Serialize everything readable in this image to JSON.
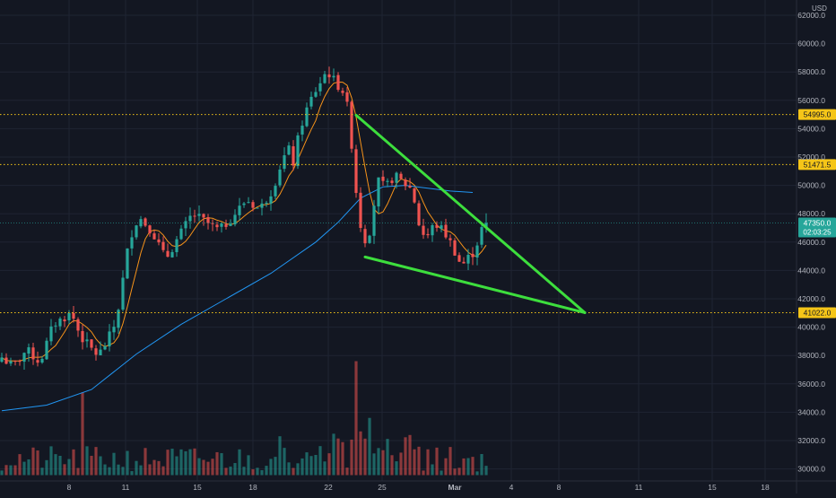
{
  "header": {
    "currency": "USD"
  },
  "chart_data": {
    "type": "candlestick",
    "y_axis": {
      "unit": "USD",
      "range": [
        29000,
        63000
      ],
      "ticks": [
        "30000.0",
        "32000.0",
        "34000.0",
        "36000.0",
        "38000.0",
        "40000.0",
        "42000.0",
        "44000.0",
        "46000.0",
        "48000.0",
        "50000.0",
        "52000.0",
        "54000.0",
        "56000.0",
        "58000.0",
        "60000.0",
        "62000.0"
      ]
    },
    "x_axis": {
      "ticks": [
        {
          "label": "8",
          "bold": false
        },
        {
          "label": "11",
          "bold": false
        },
        {
          "label": "15",
          "bold": false
        },
        {
          "label": "18",
          "bold": false
        },
        {
          "label": "22",
          "bold": false
        },
        {
          "label": "25",
          "bold": false
        },
        {
          "label": "Mar",
          "bold": true
        },
        {
          "label": "4",
          "bold": false
        },
        {
          "label": "8",
          "bold": false
        },
        {
          "label": "11",
          "bold": false
        },
        {
          "label": "15",
          "bold": false
        },
        {
          "label": "18",
          "bold": false
        }
      ]
    },
    "horizontal_levels": [
      {
        "value": 54995.0,
        "label": "54995.0",
        "color": "#f5c518"
      },
      {
        "value": 51471.5,
        "label": "51471.5",
        "color": "#f5c518"
      },
      {
        "value": 41022.0,
        "label": "41022.0",
        "color": "#f5c518"
      }
    ],
    "last_price": {
      "value": 47350.0,
      "label": "47350.0",
      "countdown": "02:03:25",
      "color": "#26a69a"
    },
    "candle_path": [
      [
        0,
        38000
      ],
      [
        3,
        37200
      ],
      [
        6,
        38400
      ],
      [
        9,
        37500
      ],
      [
        12,
        40200
      ],
      [
        16,
        41000
      ],
      [
        18,
        39400
      ],
      [
        20,
        38600
      ],
      [
        22,
        38000
      ],
      [
        24,
        39000
      ],
      [
        26,
        40400
      ],
      [
        29,
        46300
      ],
      [
        31,
        47800
      ],
      [
        34,
        46800
      ],
      [
        37,
        44800
      ],
      [
        40,
        46400
      ],
      [
        43,
        48000
      ],
      [
        46,
        47400
      ],
      [
        49,
        46800
      ],
      [
        52,
        47800
      ],
      [
        55,
        49000
      ],
      [
        58,
        48300
      ],
      [
        61,
        49800
      ],
      [
        63,
        51800
      ],
      [
        64.5,
        52500
      ],
      [
        65.5,
        51600
      ],
      [
        67,
        54000
      ],
      [
        69,
        55800
      ],
      [
        71,
        57000
      ],
      [
        73,
        58100
      ],
      [
        75,
        57200
      ],
      [
        76.5,
        56700
      ],
      [
        78,
        55000
      ],
      [
        79,
        50800
      ],
      [
        80.5,
        47200
      ],
      [
        82,
        45700
      ],
      [
        83,
        47900
      ],
      [
        84.5,
        50300
      ],
      [
        86,
        49800
      ],
      [
        88,
        50700
      ],
      [
        90,
        50200
      ],
      [
        92,
        49700
      ],
      [
        93.5,
        47300
      ],
      [
        95,
        46200
      ],
      [
        97,
        47300
      ],
      [
        99,
        46800
      ],
      [
        101,
        45700
      ],
      [
        103,
        44300
      ],
      [
        104.5,
        44900
      ],
      [
        106,
        45400
      ],
      [
        107,
        46500
      ],
      [
        108,
        47350
      ]
    ],
    "ma_fast_color": "#f7931a",
    "ma_slow_color": "#2196f3",
    "ma_slow_path": [
      [
        0,
        34100
      ],
      [
        10,
        34500
      ],
      [
        20,
        35600
      ],
      [
        30,
        38100
      ],
      [
        40,
        40200
      ],
      [
        50,
        42000
      ],
      [
        60,
        43800
      ],
      [
        70,
        46000
      ],
      [
        75,
        47400
      ],
      [
        80,
        49100
      ],
      [
        85,
        49900
      ],
      [
        90,
        50000
      ],
      [
        95,
        49800
      ],
      [
        100,
        49600
      ],
      [
        105,
        49500
      ]
    ],
    "pattern": {
      "type": "falling wedge",
      "color": "#3dde3d",
      "upper_line": [
        [
          79,
          54950
        ],
        [
          130,
          41022
        ]
      ],
      "lower_line": [
        [
          81,
          44950
        ],
        [
          130,
          41022
        ]
      ]
    },
    "volume_spikes": [
      [
        18,
        35400
      ],
      [
        78.5,
        37600
      ],
      [
        81.5,
        33600
      ]
    ]
  }
}
